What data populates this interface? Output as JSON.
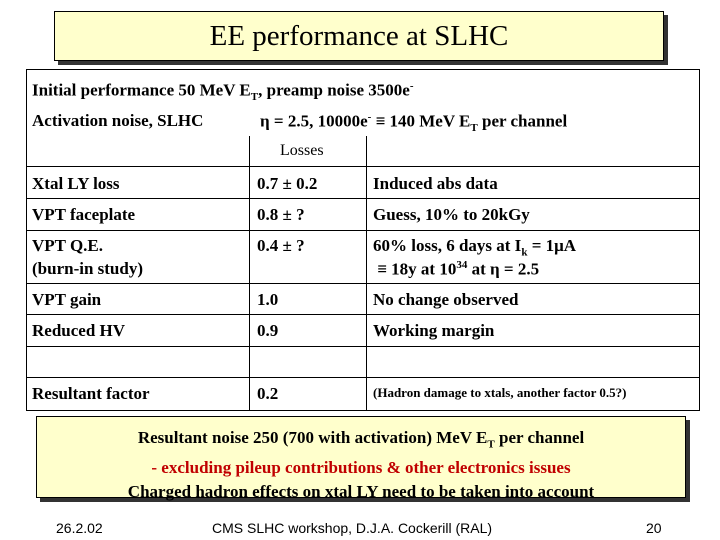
{
  "title": "EE performance at SLHC",
  "header": {
    "line1": "Initial performance 50 MeV E",
    "line1_sub": "T",
    "line1_rest": ", preamp noise 3500e",
    "line1_sup": "-",
    "activation_label": "Activation noise, SLHC",
    "activation_eta": "η = 2.5,  10000e",
    "activation_sup": "-",
    "activation_rest": " ≡ 140 MeV E",
    "activation_sub": "T",
    "activation_end": " per channel",
    "losses_label": "Losses"
  },
  "rows": [
    {
      "item": "Xtal LY loss",
      "loss": "0.7 ± 0.2",
      "comment": "Induced abs data"
    },
    {
      "item": "VPT faceplate",
      "loss": "0.8 ± ?",
      "comment": "Guess, 10% to 20kGy"
    },
    {
      "item": "VPT Q.E.",
      "item2": "(burn-in study)",
      "loss": "0.4 ± ?",
      "comment": "60% loss, 6 days at I",
      "comment_sub": "k",
      "comment_rest": " = 1μA",
      "comment2": "≡ 18y at 10",
      "comment2_sup": "34",
      "comment2_rest": " at η = 2.5"
    },
    {
      "item": "VPT gain",
      "loss": "1.0",
      "comment": "No change observed"
    },
    {
      "item": "Reduced HV",
      "loss": "0.9",
      "comment": "Working margin"
    },
    {
      "item": "Resultant factor",
      "loss": "0.2",
      "comment": "(Hadron damage to xtals, another factor 0.5?)"
    }
  ],
  "summary": {
    "line1": "Resultant noise 250 (700 with activation) MeV E",
    "line1_sub": "T",
    "line1_rest": " per channel",
    "line2": "- excluding pileup contributions & other electronics issues",
    "line3": "Charged hadron effects on xtal LY need to be taken into account"
  },
  "footer": {
    "date": "26.2.02",
    "center": "CMS SLHC workshop, D.J.A. Cockerill (RAL)",
    "page": "20"
  },
  "colors": {
    "box_fill": "#ffffcc",
    "accent_red": "#c00000"
  }
}
